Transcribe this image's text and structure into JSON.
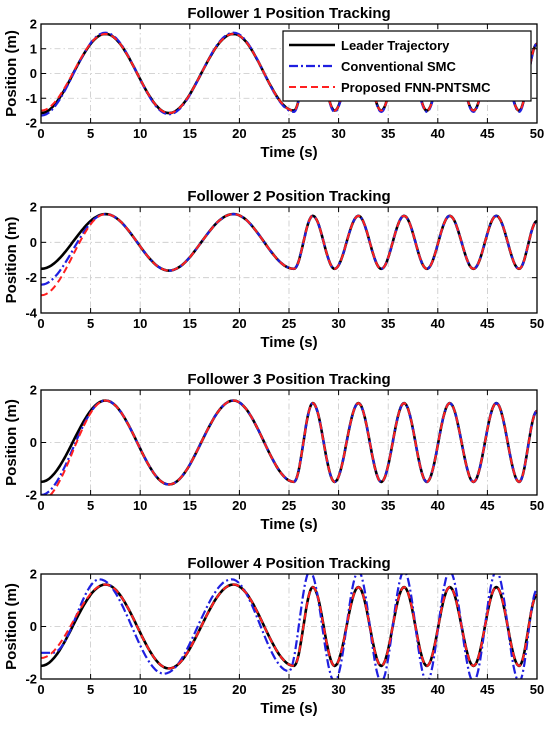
{
  "chart_data": [
    {
      "type": "line",
      "title": "Follower 1 Position Tracking",
      "xlabel": "Time (s)",
      "ylabel": "Position (m)",
      "xlim": [
        0,
        50
      ],
      "ylim": [
        -2,
        2
      ],
      "xticks": [
        0,
        5,
        10,
        15,
        20,
        25,
        30,
        35,
        40,
        45,
        50
      ],
      "yticks": [
        -2,
        -1,
        0,
        1,
        2
      ],
      "grid": true,
      "legend": {
        "position": "top-right",
        "entries": [
          "Leader Trajectory",
          "Conventional SMC",
          "Proposed FNN-PNTSMC"
        ]
      },
      "series": [
        {
          "name": "Leader Trajectory",
          "color": "#000000",
          "style": "solid",
          "x": [
            0,
            6.5,
            12.9,
            19.4,
            25.5,
            27.4,
            29.6,
            32.0,
            34.3,
            36.6,
            38.9,
            41.2,
            43.6,
            45.9,
            48.2,
            50
          ],
          "y": [
            -1.6,
            1.6,
            -1.6,
            1.6,
            -1.5,
            1.5,
            -1.5,
            1.5,
            -1.5,
            1.5,
            -1.5,
            1.5,
            -1.5,
            1.5,
            -1.5,
            1.2
          ]
        },
        {
          "name": "Conventional SMC",
          "color": "#1f1fe0",
          "style": "dashdot",
          "x": [
            0,
            6.5,
            12.9,
            19.4,
            25.5,
            27.4,
            29.6,
            32.0,
            34.3,
            36.6,
            38.9,
            41.2,
            43.6,
            45.9,
            48.2,
            50
          ],
          "y": [
            -1.7,
            1.65,
            -1.65,
            1.65,
            -1.55,
            1.55,
            -1.55,
            1.55,
            -1.55,
            1.55,
            -1.55,
            1.55,
            -1.55,
            1.55,
            -1.55,
            1.2
          ]
        },
        {
          "name": "Proposed FNN-PNTSMC",
          "color": "#ff2020",
          "style": "dashed",
          "x": [
            0,
            6.5,
            12.9,
            19.4,
            25.5,
            27.4,
            29.6,
            32.0,
            34.3,
            36.6,
            38.9,
            41.2,
            43.6,
            45.9,
            48.2,
            50
          ],
          "y": [
            -1.5,
            1.6,
            -1.6,
            1.6,
            -1.5,
            1.5,
            -1.5,
            1.5,
            -1.5,
            1.5,
            -1.5,
            1.5,
            -1.5,
            1.5,
            -1.5,
            1.2
          ]
        }
      ]
    },
    {
      "type": "line",
      "title": "Follower 2 Position Tracking",
      "xlabel": "Time (s)",
      "ylabel": "Position (m)",
      "xlim": [
        0,
        50
      ],
      "ylim": [
        -4,
        2
      ],
      "xticks": [
        0,
        5,
        10,
        15,
        20,
        25,
        30,
        35,
        40,
        45,
        50
      ],
      "yticks": [
        -4,
        -2,
        0,
        2
      ],
      "grid": true,
      "series": [
        {
          "name": "Leader Trajectory",
          "color": "#000000",
          "style": "solid",
          "x": [
            0,
            6.5,
            12.9,
            19.4,
            25.5,
            27.4,
            29.6,
            32.0,
            34.3,
            36.6,
            38.9,
            41.2,
            43.6,
            45.9,
            48.2,
            50
          ],
          "y": [
            -1.5,
            1.6,
            -1.6,
            1.6,
            -1.5,
            1.5,
            -1.5,
            1.5,
            -1.5,
            1.5,
            -1.5,
            1.5,
            -1.5,
            1.5,
            -1.5,
            1.2
          ]
        },
        {
          "name": "Conventional SMC",
          "color": "#1f1fe0",
          "style": "dashdot",
          "x": [
            0,
            6.5,
            12.9,
            19.4,
            25.5,
            27.4,
            29.6,
            32.0,
            34.3,
            36.6,
            38.9,
            41.2,
            43.6,
            45.9,
            48.2,
            50
          ],
          "y": [
            -2.4,
            1.6,
            -1.6,
            1.6,
            -1.5,
            1.5,
            -1.5,
            1.5,
            -1.5,
            1.5,
            -1.5,
            1.5,
            -1.5,
            1.5,
            -1.5,
            1.2
          ]
        },
        {
          "name": "Proposed FNN-PNTSMC",
          "color": "#ff2020",
          "style": "dashed",
          "x": [
            0,
            6.5,
            12.9,
            19.4,
            25.5,
            27.4,
            29.6,
            32.0,
            34.3,
            36.6,
            38.9,
            41.2,
            43.6,
            45.9,
            48.2,
            50
          ],
          "y": [
            -3.0,
            1.6,
            -1.6,
            1.6,
            -1.5,
            1.5,
            -1.5,
            1.5,
            -1.5,
            1.5,
            -1.5,
            1.5,
            -1.5,
            1.5,
            -1.5,
            1.2
          ]
        }
      ]
    },
    {
      "type": "line",
      "title": "Follower 3 Position Tracking",
      "xlabel": "Time (s)",
      "ylabel": "Position (m)",
      "xlim": [
        0,
        50
      ],
      "ylim": [
        -2,
        2
      ],
      "xticks": [
        0,
        5,
        10,
        15,
        20,
        25,
        30,
        35,
        40,
        45,
        50
      ],
      "yticks": [
        -2,
        0,
        2
      ],
      "grid": true,
      "series": [
        {
          "name": "Leader Trajectory",
          "color": "#000000",
          "style": "solid",
          "x": [
            0,
            6.5,
            12.9,
            19.4,
            25.5,
            27.4,
            29.6,
            32.0,
            34.3,
            36.6,
            38.9,
            41.2,
            43.6,
            45.9,
            48.2,
            50
          ],
          "y": [
            -1.5,
            1.6,
            -1.6,
            1.6,
            -1.5,
            1.5,
            -1.5,
            1.5,
            -1.5,
            1.5,
            -1.5,
            1.5,
            -1.5,
            1.5,
            -1.5,
            1.2
          ]
        },
        {
          "name": "Conventional SMC",
          "color": "#1f1fe0",
          "style": "dashdot",
          "x": [
            0,
            6.5,
            12.9,
            19.4,
            25.5,
            27.4,
            29.6,
            32.0,
            34.3,
            36.6,
            38.9,
            41.2,
            43.6,
            45.9,
            48.2,
            50
          ],
          "y": [
            -2.0,
            1.6,
            -1.6,
            1.6,
            -1.5,
            1.5,
            -1.5,
            1.5,
            -1.5,
            1.5,
            -1.5,
            1.5,
            -1.5,
            1.5,
            -1.5,
            1.2
          ]
        },
        {
          "name": "Proposed FNN-PNTSMC",
          "color": "#ff2020",
          "style": "dashed",
          "x": [
            0,
            6.5,
            12.9,
            19.4,
            25.5,
            27.4,
            29.6,
            32.0,
            34.3,
            36.6,
            38.9,
            41.2,
            43.6,
            45.9,
            48.2,
            50
          ],
          "y": [
            -2.2,
            1.6,
            -1.6,
            1.6,
            -1.5,
            1.5,
            -1.5,
            1.5,
            -1.5,
            1.5,
            -1.5,
            1.5,
            -1.5,
            1.5,
            -1.5,
            1.2
          ]
        }
      ]
    },
    {
      "type": "line",
      "title": "Follower 4 Position Tracking",
      "xlabel": "Time (s)",
      "ylabel": "Position (m)",
      "xlim": [
        0,
        50
      ],
      "ylim": [
        -2,
        2
      ],
      "xticks": [
        0,
        5,
        10,
        15,
        20,
        25,
        30,
        35,
        40,
        45,
        50
      ],
      "yticks": [
        -2,
        0,
        2
      ],
      "grid": true,
      "series": [
        {
          "name": "Leader Trajectory",
          "color": "#000000",
          "style": "solid",
          "x": [
            0,
            6.5,
            12.9,
            19.4,
            25.5,
            27.4,
            29.6,
            32.0,
            34.3,
            36.6,
            38.9,
            41.2,
            43.6,
            45.9,
            48.2,
            50
          ],
          "y": [
            -1.5,
            1.6,
            -1.6,
            1.6,
            -1.5,
            1.5,
            -1.5,
            1.5,
            -1.5,
            1.5,
            -1.5,
            1.5,
            -1.5,
            1.5,
            -1.5,
            1.2
          ]
        },
        {
          "name": "Conventional SMC",
          "color": "#1f1fe0",
          "style": "dashdot",
          "x": [
            0,
            1.2,
            5.9,
            12.4,
            19.2,
            25.0,
            27.1,
            29.6,
            32.0,
            34.3,
            36.6,
            38.9,
            41.2,
            43.6,
            45.9,
            48.2,
            50
          ],
          "y": [
            -1.0,
            -1.0,
            1.8,
            -1.8,
            1.8,
            -1.7,
            2.1,
            -2.1,
            2.1,
            -2.1,
            2.1,
            -2.1,
            2.1,
            -2.1,
            2.1,
            -2.1,
            1.4
          ]
        },
        {
          "name": "Proposed FNN-PNTSMC",
          "color": "#ff2020",
          "style": "dashed",
          "x": [
            0,
            6.5,
            12.9,
            19.4,
            25.5,
            27.4,
            29.6,
            32.0,
            34.3,
            36.6,
            38.9,
            41.2,
            43.6,
            45.9,
            48.2,
            50
          ],
          "y": [
            -1.2,
            1.6,
            -1.6,
            1.6,
            -1.5,
            1.5,
            -1.5,
            1.5,
            -1.5,
            1.5,
            -1.5,
            1.5,
            -1.5,
            1.5,
            -1.5,
            1.2
          ]
        }
      ]
    }
  ]
}
